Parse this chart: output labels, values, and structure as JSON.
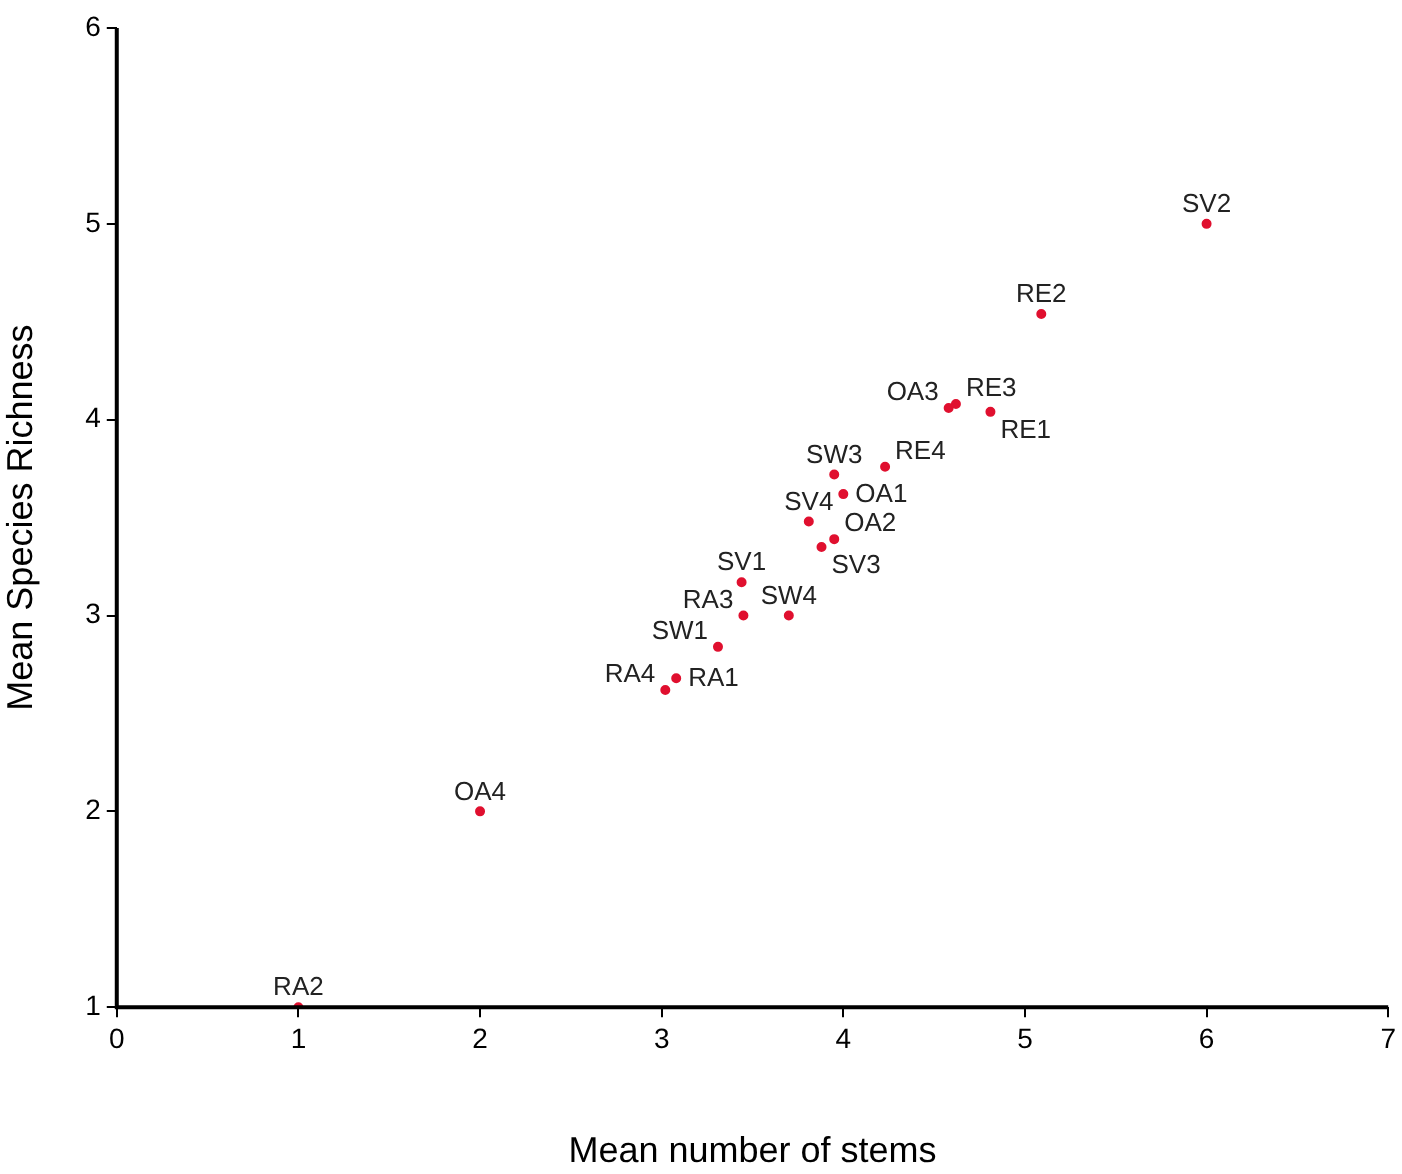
{
  "chart_data": {
    "type": "scatter",
    "xlabel": "Mean number of stems",
    "ylabel": "Mean Species Richness",
    "x": [
      1,
      2,
      3.02,
      3.08,
      3.31,
      3.45,
      3.7,
      3.44,
      3.88,
      3.95,
      3.81,
      4.0,
      3.95,
      4.23,
      4.58,
      4.62,
      4.81,
      5.09,
      6
    ],
    "values": [
      1,
      2,
      2.62,
      2.68,
      2.84,
      3,
      3,
      3.17,
      3.35,
      3.39,
      3.48,
      3.62,
      3.72,
      3.76,
      4.06,
      4.08,
      4.04,
      4.54,
      5
    ],
    "color": "#e0102f",
    "marker": "circle",
    "grid": false,
    "legend": false,
    "xlim": [
      0,
      7
    ],
    "xticks": [
      0,
      1,
      2,
      3,
      4,
      5,
      6,
      7
    ],
    "ylim": [
      1,
      6
    ],
    "yticks": [
      1,
      2,
      3,
      4,
      5,
      6
    ],
    "annotations": [
      {
        "text": "RA2",
        "x": 1,
        "y": 1
      },
      {
        "text": "OA4",
        "x": 2,
        "y": 2
      },
      {
        "text": "RA4",
        "x": 3.02,
        "y": 2.62
      },
      {
        "text": "RA1",
        "x": 3.08,
        "y": 2.68
      },
      {
        "text": "SW1",
        "x": 3.31,
        "y": 2.84
      },
      {
        "text": "RA3",
        "x": 3.45,
        "y": 3
      },
      {
        "text": "SW4",
        "x": 3.7,
        "y": 3
      },
      {
        "text": "SV1",
        "x": 3.44,
        "y": 3.17
      },
      {
        "text": "SV3",
        "x": 3.88,
        "y": 3.35
      },
      {
        "text": "OA2",
        "x": 3.95,
        "y": 3.39
      },
      {
        "text": "SV4",
        "x": 3.81,
        "y": 3.48
      },
      {
        "text": "OA1",
        "x": 4.0,
        "y": 3.62
      },
      {
        "text": "SW3",
        "x": 3.95,
        "y": 3.72
      },
      {
        "text": "RE4",
        "x": 4.23,
        "y": 3.76
      },
      {
        "text": "OA3",
        "x": 4.58,
        "y": 4.06
      },
      {
        "text": "RE3",
        "x": 4.62,
        "y": 4.08
      },
      {
        "text": "RE1",
        "x": 4.81,
        "y": 4.04
      },
      {
        "text": "RE2",
        "x": 5.09,
        "y": 4.54
      },
      {
        "text": "SV2",
        "x": 6,
        "y": 5
      }
    ]
  }
}
